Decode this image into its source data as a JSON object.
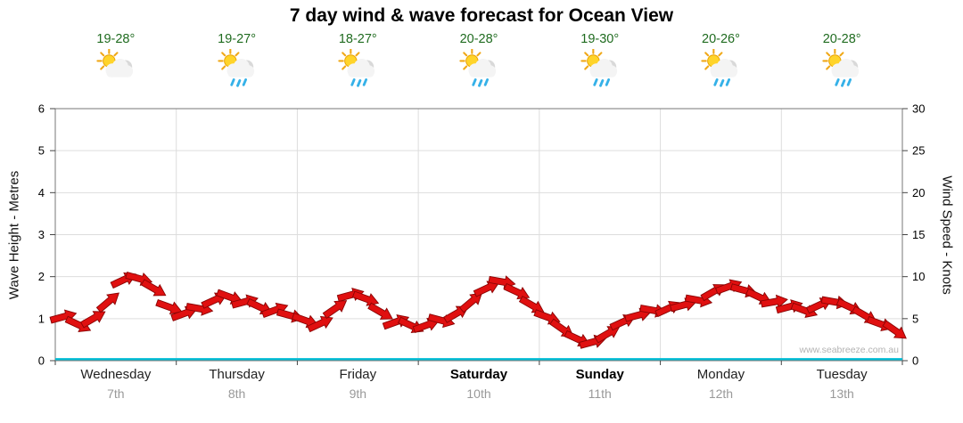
{
  "chart_data": {
    "type": "wind-arrows",
    "title": "7 day wind & wave forecast for Ocean View",
    "watermark": "www.seabreeze.com.au",
    "left_axis": {
      "label": "Wave Height - Metres",
      "min": 0,
      "max": 6,
      "tick_step": 1
    },
    "right_axis": {
      "label": "Wind Speed - Knots",
      "min": 0,
      "max": 30,
      "tick_step": 5
    },
    "grid": true,
    "days": [
      {
        "name": "Wednesday",
        "date": "7th",
        "temp": "19-28°",
        "condition": "partly-cloudy",
        "weekend": false
      },
      {
        "name": "Thursday",
        "date": "8th",
        "temp": "19-27°",
        "condition": "showers",
        "weekend": false
      },
      {
        "name": "Friday",
        "date": "9th",
        "temp": "18-27°",
        "condition": "showers",
        "weekend": false
      },
      {
        "name": "Saturday",
        "date": "10th",
        "temp": "20-28°",
        "condition": "showers",
        "weekend": true
      },
      {
        "name": "Sunday",
        "date": "11th",
        "temp": "19-30°",
        "condition": "showers",
        "weekend": true
      },
      {
        "name": "Monday",
        "date": "12th",
        "temp": "20-26°",
        "condition": "showers",
        "weekend": false
      },
      {
        "name": "Tuesday",
        "date": "13th",
        "temp": "20-28°",
        "condition": "showers",
        "weekend": false
      }
    ],
    "samples_per_day": 8,
    "series": [
      {
        "name": "Wind speed & direction",
        "unit": "knots",
        "color": "#e01010",
        "outline": "#8a0404",
        "knots": [
          5.2,
          4.3,
          5.0,
          7.0,
          9.6,
          9.8,
          8.6,
          6.4,
          5.6,
          6.2,
          7.2,
          7.6,
          7.0,
          6.4,
          6.0,
          5.4,
          4.8,
          4.4,
          6.2,
          7.8,
          7.4,
          5.8,
          4.6,
          4.2,
          4.2,
          4.8,
          5.6,
          7.0,
          8.6,
          9.4,
          8.2,
          6.6,
          5.2,
          3.8,
          2.6,
          2.2,
          3.2,
          4.6,
          5.4,
          6.0,
          6.2,
          6.6,
          7.2,
          8.2,
          8.8,
          8.4,
          7.6,
          7.0,
          6.4,
          6.0,
          6.6,
          7.0,
          6.4,
          5.4,
          4.4,
          3.6
        ],
        "dir_deg": [
          -15,
          25,
          -30,
          -40,
          -25,
          15,
          30,
          20,
          -20,
          10,
          -25,
          20,
          -15,
          25,
          -20,
          15,
          20,
          -25,
          -35,
          -15,
          20,
          30,
          -20,
          25,
          -20,
          15,
          -30,
          -40,
          -25,
          10,
          25,
          30,
          20,
          35,
          25,
          -15,
          -30,
          -25,
          -15,
          10,
          -25,
          -15,
          10,
          -30,
          -20,
          15,
          25,
          -10,
          -15,
          20,
          -25,
          10,
          25,
          30,
          20,
          35
        ]
      }
    ]
  },
  "colors": {
    "temp": "#1f6b1f",
    "date": "#999999",
    "grid": "#dddddd",
    "border": "#777777",
    "tick": "#444444",
    "baseline": "#00bdd6",
    "arrow": "#e01010",
    "arrow_outline": "#8a0404"
  }
}
